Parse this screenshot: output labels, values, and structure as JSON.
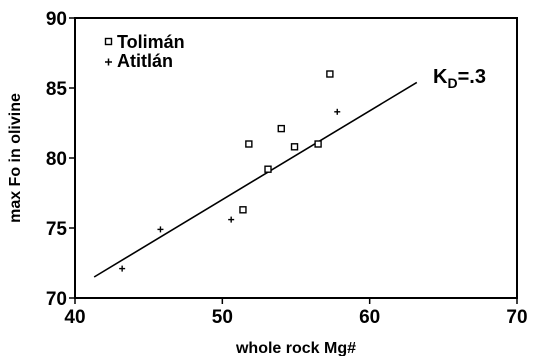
{
  "chart_data": {
    "type": "scatter",
    "title": "",
    "xlabel": "whole rock Mg#",
    "ylabel": "max Fo in olivine",
    "xlim": [
      40,
      70
    ],
    "ylim": [
      70,
      90
    ],
    "xticks": [
      40,
      50,
      60,
      70
    ],
    "yticks": [
      70,
      75,
      80,
      85,
      90
    ],
    "grid": false,
    "legend_position": "top-left",
    "series": [
      {
        "name": "Tolimán",
        "marker": "open-square",
        "color": "#000000",
        "points": [
          {
            "x": 51.4,
            "y": 76.3
          },
          {
            "x": 51.8,
            "y": 81.0
          },
          {
            "x": 53.1,
            "y": 79.2
          },
          {
            "x": 54.0,
            "y": 82.1
          },
          {
            "x": 54.9,
            "y": 80.8
          },
          {
            "x": 56.5,
            "y": 81.0
          },
          {
            "x": 57.3,
            "y": 86.0
          }
        ]
      },
      {
        "name": "Atitlán",
        "marker": "plus",
        "color": "#000000",
        "points": [
          {
            "x": 43.2,
            "y": 72.1
          },
          {
            "x": 45.8,
            "y": 74.9
          },
          {
            "x": 50.6,
            "y": 75.6
          },
          {
            "x": 57.8,
            "y": 83.3
          }
        ]
      }
    ],
    "reference_line": {
      "label": "K",
      "label_subscript": "D",
      "label_value": "=.3",
      "points": [
        {
          "x": 41.3,
          "y": 71.5
        },
        {
          "x": 63.2,
          "y": 85.4
        }
      ]
    }
  }
}
